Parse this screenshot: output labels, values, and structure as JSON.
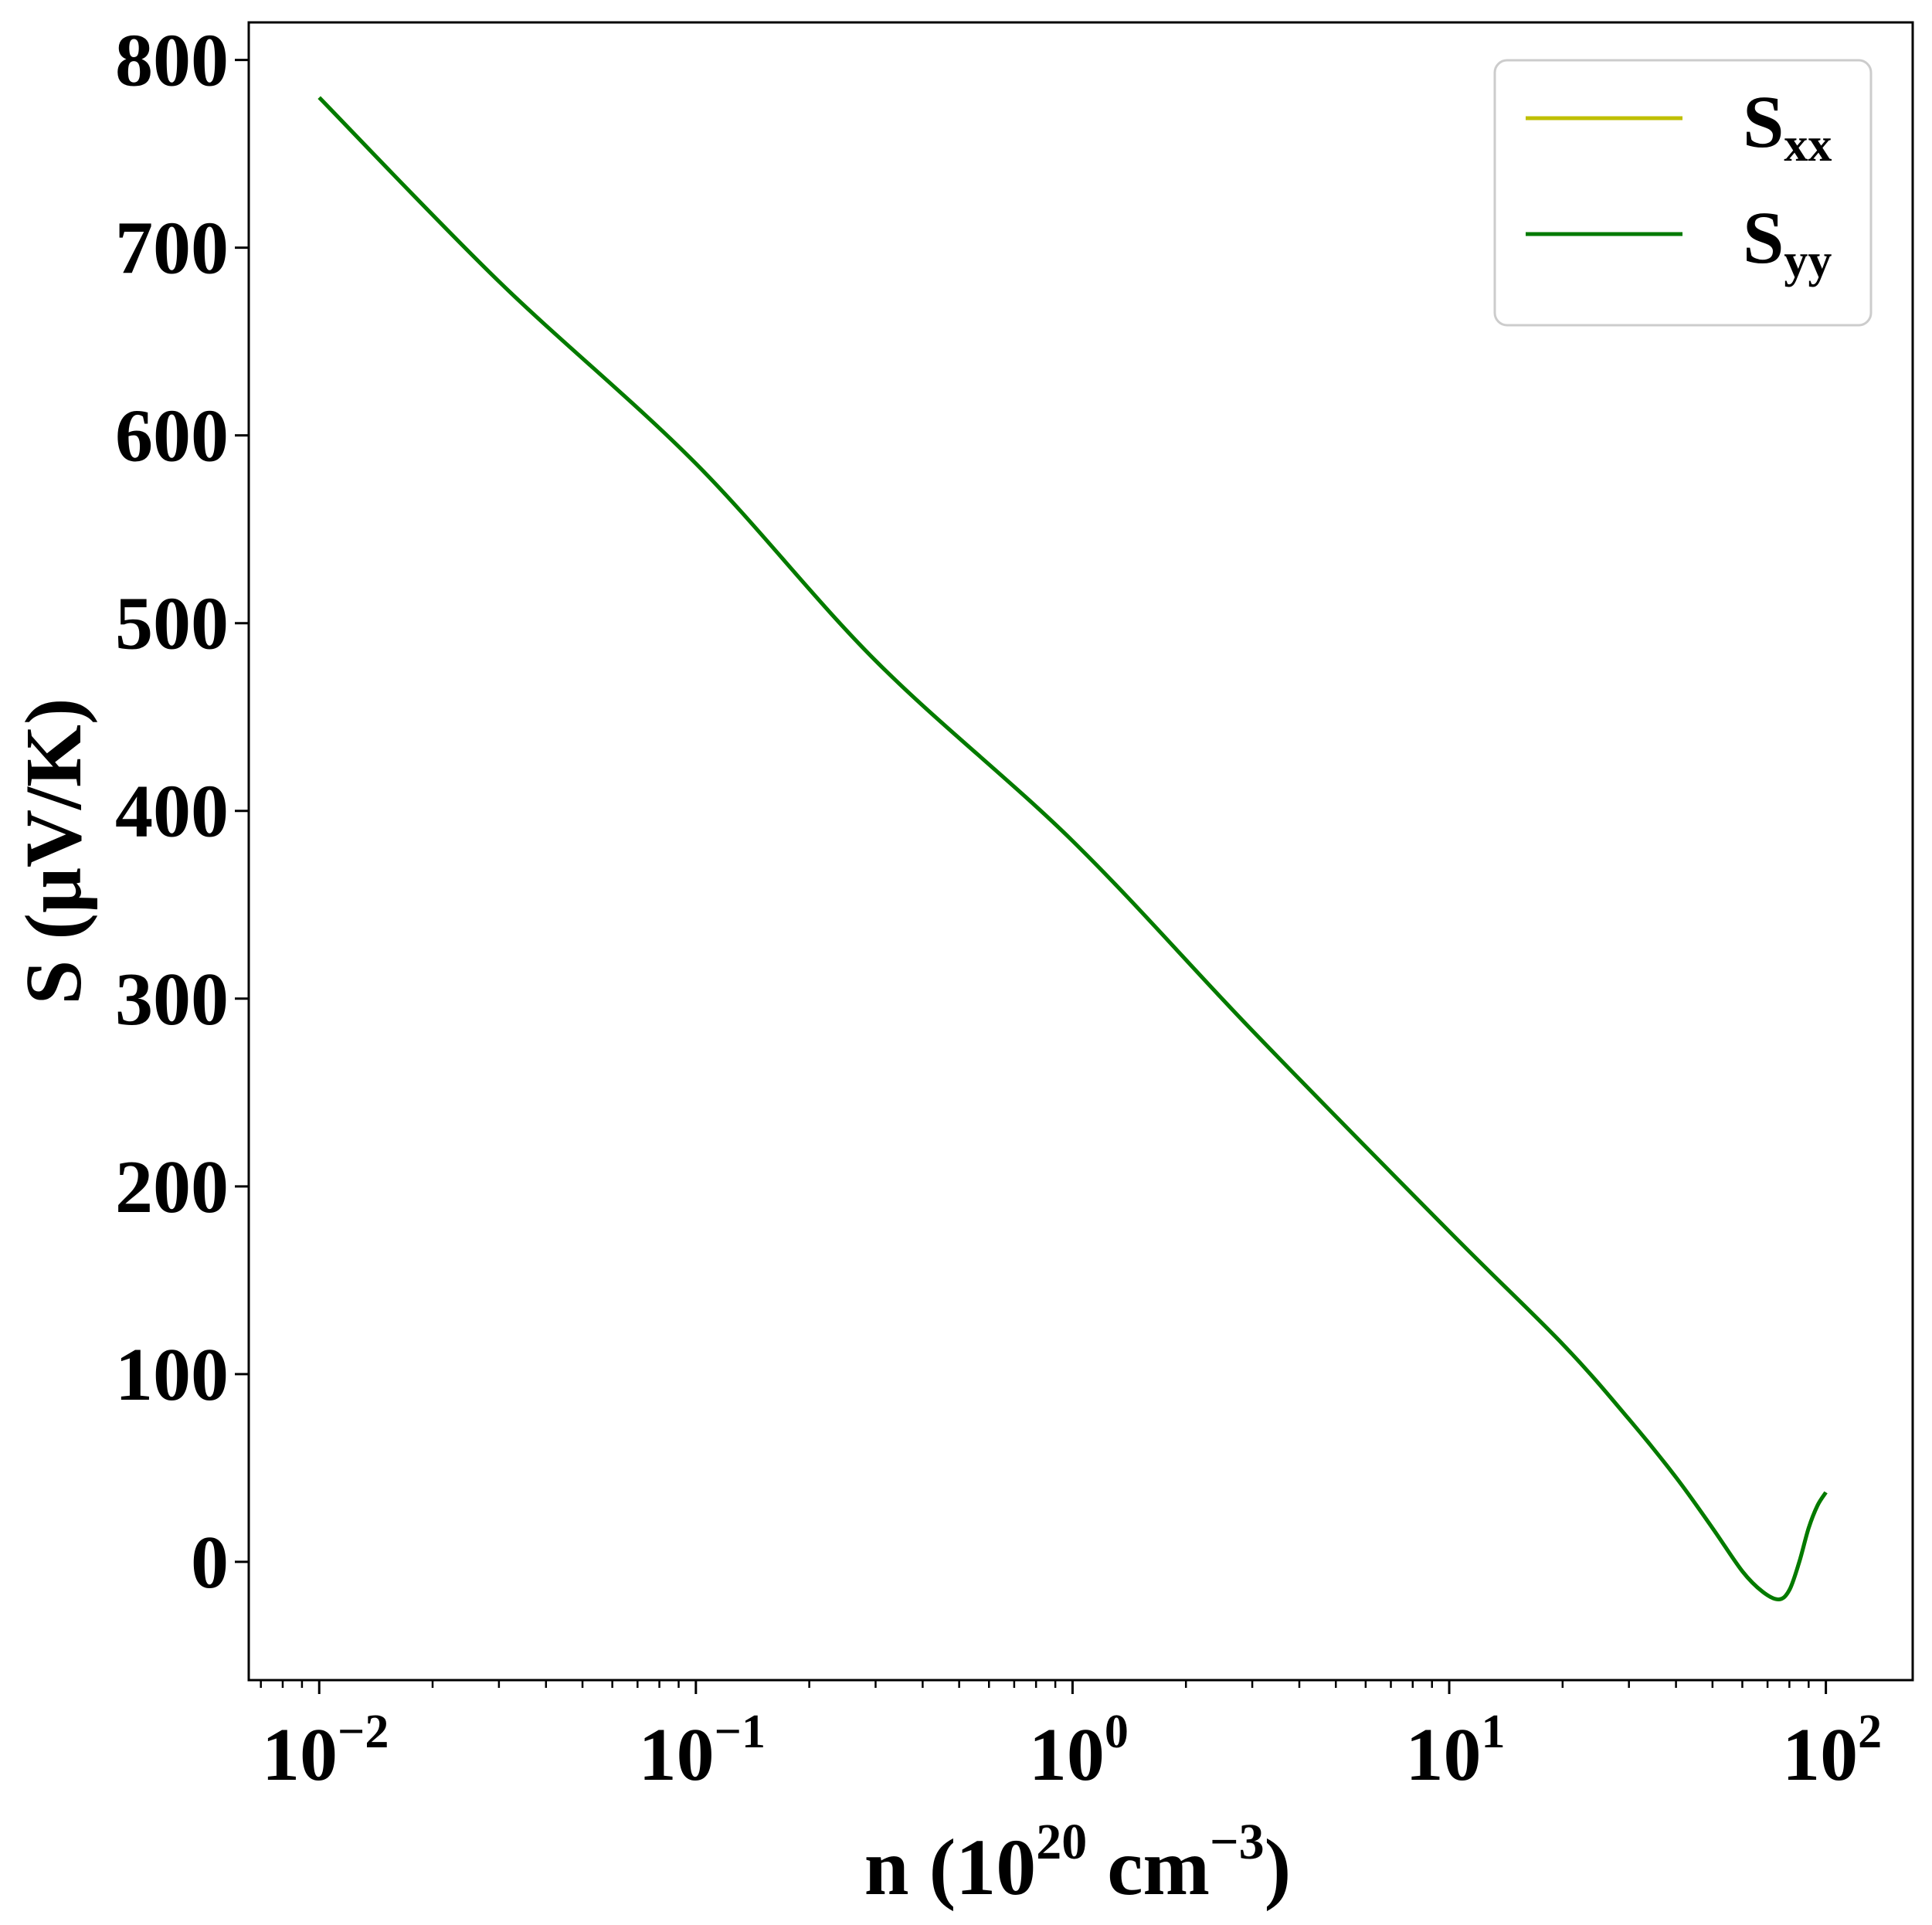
{
  "chart_data": {
    "type": "line",
    "title": "",
    "xlabel": {
      "prefix": "n (10",
      "sup1": "20",
      "mid": " cm",
      "sup2": "−3",
      "suffix": ")"
    },
    "ylabel": "S (μV/K)",
    "xscale": "log",
    "xlim": [
      0.0065,
      170
    ],
    "ylim": [
      -63,
      820
    ],
    "xticks": [
      {
        "value": 0.01,
        "base": "10",
        "exp": "−2"
      },
      {
        "value": 0.1,
        "base": "10",
        "exp": "−1"
      },
      {
        "value": 1,
        "base": "10",
        "exp": "0"
      },
      {
        "value": 10,
        "base": "10",
        "exp": "1"
      },
      {
        "value": 100,
        "base": "10",
        "exp": "2"
      }
    ],
    "yticks": [
      {
        "value": 0,
        "label": "0"
      },
      {
        "value": 100,
        "label": "100"
      },
      {
        "value": 200,
        "label": "200"
      },
      {
        "value": 300,
        "label": "300"
      },
      {
        "value": 400,
        "label": "400"
      },
      {
        "value": 500,
        "label": "500"
      },
      {
        "value": 600,
        "label": "600"
      },
      {
        "value": 700,
        "label": "700"
      },
      {
        "value": 800,
        "label": "800"
      }
    ],
    "grid": false,
    "legend": {
      "position": "top-right",
      "entries": [
        {
          "main": "S",
          "sub": "xx",
          "color": "#bfbf00"
        },
        {
          "main": "S",
          "sub": "yy",
          "color": "#007a00"
        }
      ]
    },
    "series": [
      {
        "color": "#bfbf00",
        "x": [
          0.01,
          0.03,
          0.1,
          0.3,
          1,
          3,
          10,
          20,
          30,
          40,
          50,
          60,
          68,
          75,
          80,
          85,
          90,
          95,
          100
        ],
        "y": [
          780,
          682,
          585,
          480,
          384,
          283,
          176,
          116,
          76,
          45,
          18,
          -5,
          -16,
          -20,
          -15,
          0,
          18,
          30,
          37
        ]
      },
      {
        "color": "#007a00",
        "x": [
          0.01,
          0.03,
          0.1,
          0.3,
          1,
          3,
          10,
          20,
          30,
          40,
          50,
          60,
          68,
          75,
          80,
          85,
          90,
          95,
          100
        ],
        "y": [
          780,
          682,
          585,
          480,
          384,
          283,
          176,
          116,
          76,
          45,
          18,
          -5,
          -16,
          -20,
          -15,
          0,
          18,
          30,
          37
        ]
      }
    ]
  }
}
